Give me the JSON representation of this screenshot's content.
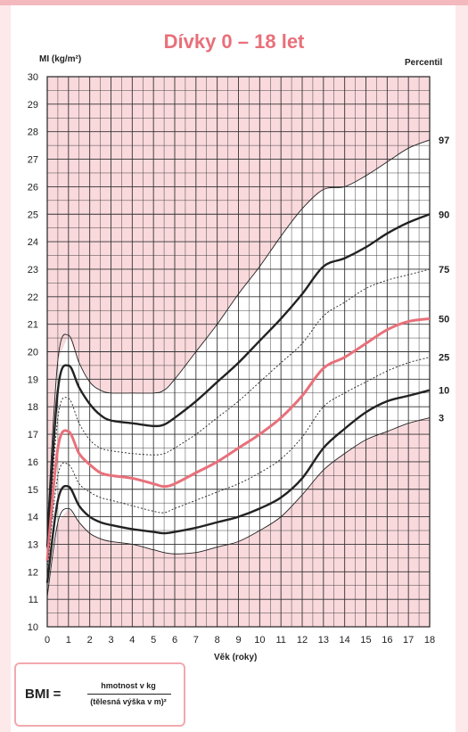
{
  "title": "Dívky 0 – 18 let",
  "colors": {
    "accent": "#e8707a",
    "zone_fill": "#f9d9dc",
    "grid": "#222222",
    "border": "#f1a9ae"
  },
  "chart_data": {
    "type": "line",
    "title": "Dívky 0 – 18 let",
    "xlabel": "Věk (roky)",
    "ylabel": "BMI (kg/m²)",
    "legend_title": "Percentil",
    "xlim": [
      0,
      18
    ],
    "ylim": [
      10,
      30
    ],
    "x_ticks": [
      0,
      1,
      2,
      3,
      4,
      5,
      6,
      7,
      8,
      9,
      10,
      11,
      12,
      13,
      14,
      15,
      16,
      17,
      18
    ],
    "y_ticks": [
      10,
      11,
      12,
      13,
      14,
      15,
      16,
      17,
      18,
      19,
      20,
      21,
      22,
      23,
      24,
      25,
      26,
      27,
      28,
      29,
      30
    ],
    "grid": true,
    "legend_position": "right",
    "x": [
      0,
      0.5,
      1,
      1.5,
      2,
      2.5,
      3,
      4,
      5,
      5.5,
      6,
      7,
      8,
      9,
      10,
      11,
      12,
      13,
      14,
      15,
      16,
      17,
      18
    ],
    "series": [
      {
        "name": "97",
        "style": "thin",
        "values": [
          13.6,
          19.7,
          20.6,
          19.6,
          18.9,
          18.6,
          18.5,
          18.5,
          18.5,
          18.6,
          19.0,
          20.0,
          21.0,
          22.1,
          23.1,
          24.2,
          25.2,
          25.9,
          26.0,
          26.4,
          26.9,
          27.4,
          27.7
        ]
      },
      {
        "name": "90",
        "style": "bold",
        "values": [
          12.9,
          18.6,
          19.5,
          18.7,
          18.1,
          17.7,
          17.5,
          17.4,
          17.3,
          17.35,
          17.6,
          18.2,
          18.9,
          19.6,
          20.4,
          21.2,
          22.1,
          23.1,
          23.4,
          23.8,
          24.3,
          24.7,
          25.0
        ]
      },
      {
        "name": "75",
        "style": "dashed",
        "values": [
          12.6,
          17.6,
          18.3,
          17.4,
          16.8,
          16.5,
          16.4,
          16.3,
          16.25,
          16.3,
          16.5,
          17.0,
          17.6,
          18.2,
          18.9,
          19.6,
          20.3,
          21.3,
          21.8,
          22.3,
          22.6,
          22.8,
          23.0
        ]
      },
      {
        "name": "50",
        "style": "accent",
        "values": [
          12.4,
          16.5,
          17.1,
          16.3,
          15.9,
          15.6,
          15.5,
          15.4,
          15.2,
          15.1,
          15.2,
          15.6,
          16.0,
          16.5,
          17.0,
          17.6,
          18.4,
          19.4,
          19.8,
          20.3,
          20.8,
          21.1,
          21.2
        ]
      },
      {
        "name": "25",
        "style": "dashed",
        "values": [
          12.1,
          15.5,
          15.9,
          15.2,
          14.9,
          14.7,
          14.6,
          14.4,
          14.2,
          14.15,
          14.3,
          14.6,
          14.9,
          15.2,
          15.6,
          16.1,
          16.9,
          18.0,
          18.5,
          18.9,
          19.3,
          19.6,
          19.8
        ]
      },
      {
        "name": "10",
        "style": "bold",
        "values": [
          11.6,
          14.6,
          15.1,
          14.4,
          14.0,
          13.8,
          13.7,
          13.55,
          13.45,
          13.4,
          13.45,
          13.6,
          13.8,
          14.0,
          14.3,
          14.7,
          15.4,
          16.5,
          17.2,
          17.8,
          18.2,
          18.4,
          18.6
        ]
      },
      {
        "name": "3",
        "style": "thin",
        "values": [
          11.1,
          13.8,
          14.3,
          13.8,
          13.4,
          13.2,
          13.1,
          13.0,
          12.8,
          12.7,
          12.65,
          12.7,
          12.9,
          13.1,
          13.5,
          14.0,
          14.8,
          15.7,
          16.3,
          16.8,
          17.1,
          17.4,
          17.6
        ]
      }
    ]
  },
  "labels": {
    "ylabel_text": "MI (kg/m²)",
    "percentile_header": "Percentil",
    "xlabel_text": "Věk (roky)"
  },
  "formula": {
    "lhs": "BMI =",
    "numerator": "hmotnost v kg",
    "denominator": "(tělesná výška v m)²"
  }
}
